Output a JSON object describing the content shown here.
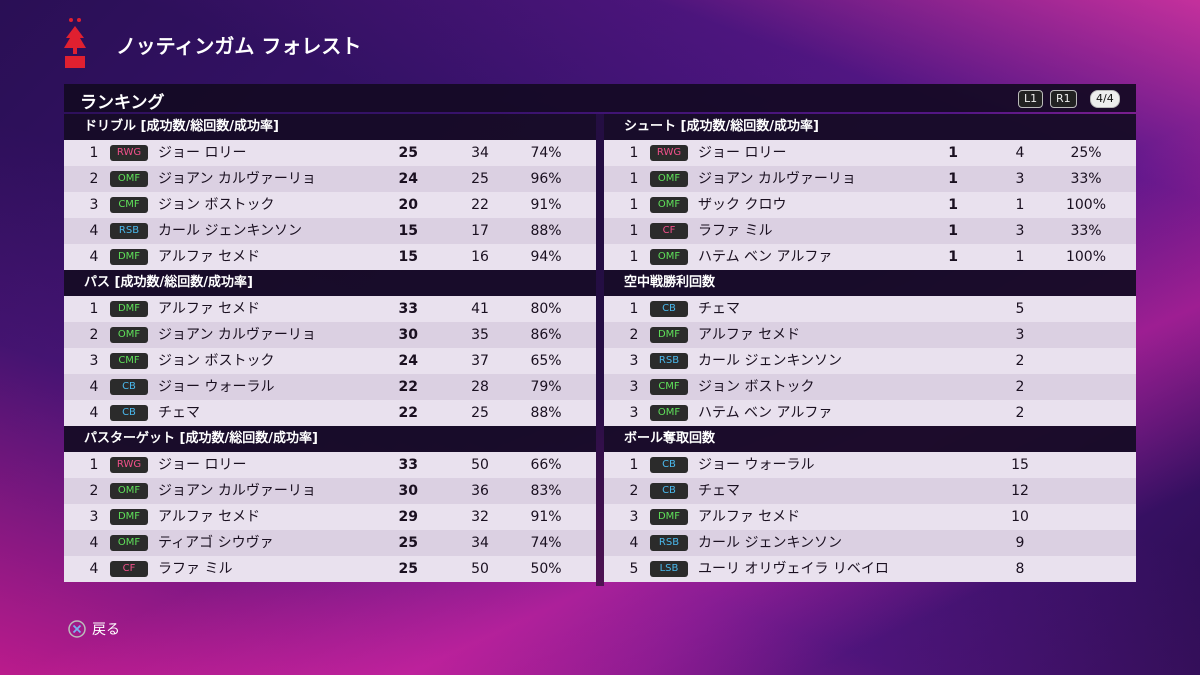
{
  "header": {
    "title": "ノッティンガム フォレスト"
  },
  "panel": {
    "title": "ランキング",
    "buttons": [
      "L1",
      "R1",
      "4/4"
    ]
  },
  "columns": [
    {
      "sections": [
        {
          "title": "ドリブル [成功数/総回数/成功率]",
          "rows": [
            {
              "rank": 1,
              "pos": "RWG",
              "pos_color": "#f0508a",
              "name": "ジョー ロリー",
              "stats": [
                25,
                34,
                "74%"
              ]
            },
            {
              "rank": 2,
              "pos": "OMF",
              "pos_color": "#5fe05a",
              "name": "ジョアン カルヴァーリョ",
              "stats": [
                24,
                25,
                "96%"
              ]
            },
            {
              "rank": 3,
              "pos": "CMF",
              "pos_color": "#5fe05a",
              "name": "ジョン ボストック",
              "stats": [
                20,
                22,
                "91%"
              ]
            },
            {
              "rank": 4,
              "pos": "RSB",
              "pos_color": "#4ab8ec",
              "name": "カール ジェンキンソン",
              "stats": [
                15,
                17,
                "88%"
              ]
            },
            {
              "rank": 4,
              "pos": "DMF",
              "pos_color": "#5fe05a",
              "name": "アルファ セメド",
              "stats": [
                15,
                16,
                "94%"
              ]
            }
          ]
        },
        {
          "title": "パス [成功数/総回数/成功率]",
          "rows": [
            {
              "rank": 1,
              "pos": "DMF",
              "pos_color": "#5fe05a",
              "name": "アルファ セメド",
              "stats": [
                33,
                41,
                "80%"
              ]
            },
            {
              "rank": 2,
              "pos": "OMF",
              "pos_color": "#5fe05a",
              "name": "ジョアン カルヴァーリョ",
              "stats": [
                30,
                35,
                "86%"
              ]
            },
            {
              "rank": 3,
              "pos": "CMF",
              "pos_color": "#5fe05a",
              "name": "ジョン ボストック",
              "stats": [
                24,
                37,
                "65%"
              ]
            },
            {
              "rank": 4,
              "pos": "CB",
              "pos_color": "#4ab8ec",
              "name": "ジョー ウォーラル",
              "stats": [
                22,
                28,
                "79%"
              ]
            },
            {
              "rank": 4,
              "pos": "CB",
              "pos_color": "#4ab8ec",
              "name": "チェマ",
              "stats": [
                22,
                25,
                "88%"
              ]
            }
          ]
        },
        {
          "title": "パスターゲット [成功数/総回数/成功率]",
          "rows": [
            {
              "rank": 1,
              "pos": "RWG",
              "pos_color": "#f0508a",
              "name": "ジョー ロリー",
              "stats": [
                33,
                50,
                "66%"
              ]
            },
            {
              "rank": 2,
              "pos": "OMF",
              "pos_color": "#5fe05a",
              "name": "ジョアン カルヴァーリョ",
              "stats": [
                30,
                36,
                "83%"
              ]
            },
            {
              "rank": 3,
              "pos": "DMF",
              "pos_color": "#5fe05a",
              "name": "アルファ セメド",
              "stats": [
                29,
                32,
                "91%"
              ]
            },
            {
              "rank": 4,
              "pos": "OMF",
              "pos_color": "#5fe05a",
              "name": "ティアゴ シウヴァ",
              "stats": [
                25,
                34,
                "74%"
              ]
            },
            {
              "rank": 4,
              "pos": "CF",
              "pos_color": "#f0508a",
              "name": "ラファ ミル",
              "stats": [
                25,
                50,
                "50%"
              ]
            }
          ]
        }
      ]
    },
    {
      "sections": [
        {
          "title": "シュート [成功数/総回数/成功率]",
          "rows": [
            {
              "rank": 1,
              "pos": "RWG",
              "pos_color": "#f0508a",
              "name": "ジョー ロリー",
              "stats": [
                1,
                4,
                "25%"
              ]
            },
            {
              "rank": 1,
              "pos": "OMF",
              "pos_color": "#5fe05a",
              "name": "ジョアン カルヴァーリョ",
              "stats": [
                1,
                3,
                "33%"
              ]
            },
            {
              "rank": 1,
              "pos": "OMF",
              "pos_color": "#5fe05a",
              "name": "ザック クロウ",
              "stats": [
                1,
                1,
                "100%"
              ]
            },
            {
              "rank": 1,
              "pos": "CF",
              "pos_color": "#f0508a",
              "name": "ラファ ミル",
              "stats": [
                1,
                3,
                "33%"
              ]
            },
            {
              "rank": 1,
              "pos": "OMF",
              "pos_color": "#5fe05a",
              "name": "ハテム ベン アルファ",
              "stats": [
                1,
                1,
                "100%"
              ]
            }
          ]
        },
        {
          "title": "空中戦勝利回数",
          "rows": [
            {
              "rank": 1,
              "pos": "CB",
              "pos_color": "#4ab8ec",
              "name": "チェマ",
              "stats": [
                5
              ]
            },
            {
              "rank": 2,
              "pos": "DMF",
              "pos_color": "#5fe05a",
              "name": "アルファ セメド",
              "stats": [
                3
              ]
            },
            {
              "rank": 3,
              "pos": "RSB",
              "pos_color": "#4ab8ec",
              "name": "カール ジェンキンソン",
              "stats": [
                2
              ]
            },
            {
              "rank": 3,
              "pos": "CMF",
              "pos_color": "#5fe05a",
              "name": "ジョン ボストック",
              "stats": [
                2
              ]
            },
            {
              "rank": 3,
              "pos": "OMF",
              "pos_color": "#5fe05a",
              "name": "ハテム ベン アルファ",
              "stats": [
                2
              ]
            }
          ]
        },
        {
          "title": "ボール奪取回数",
          "rows": [
            {
              "rank": 1,
              "pos": "CB",
              "pos_color": "#4ab8ec",
              "name": "ジョー ウォーラル",
              "stats": [
                15
              ]
            },
            {
              "rank": 2,
              "pos": "CB",
              "pos_color": "#4ab8ec",
              "name": "チェマ",
              "stats": [
                12
              ]
            },
            {
              "rank": 3,
              "pos": "DMF",
              "pos_color": "#5fe05a",
              "name": "アルファ セメド",
              "stats": [
                10
              ]
            },
            {
              "rank": 4,
              "pos": "RSB",
              "pos_color": "#4ab8ec",
              "name": "カール ジェンキンソン",
              "stats": [
                9
              ]
            },
            {
              "rank": 5,
              "pos": "LSB",
              "pos_color": "#4ab8ec",
              "name": "ユーリ オリヴェイラ リベイロ",
              "stats": [
                8
              ]
            }
          ]
        }
      ]
    }
  ],
  "footer": {
    "back": "戻る"
  }
}
